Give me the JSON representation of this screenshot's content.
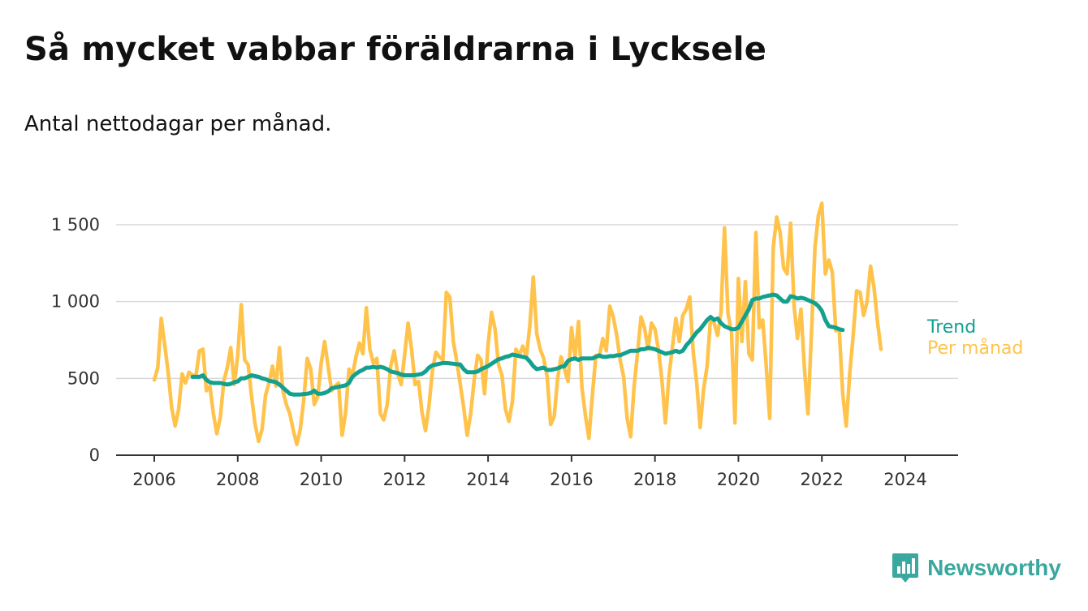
{
  "title": "Så mycket vabbar föräldrarna i Lycksele",
  "subtitle": "Antal nettodagar per månad.",
  "brand": {
    "name": "Newsworthy",
    "icon": "bar-chart-speech-bubble-icon",
    "color": "#3aa89e"
  },
  "chart_data": {
    "type": "line",
    "x_type": "date (monthly)",
    "ylim": [
      0,
      1700
    ],
    "yticks": [
      0,
      500,
      1000,
      1500
    ],
    "ytick_labels": [
      "0",
      "500",
      "1 000",
      "1 500"
    ],
    "xticks": [
      "2006",
      "2008",
      "2010",
      "2012",
      "2014",
      "2016",
      "2018",
      "2020",
      "2022",
      "2024"
    ],
    "grid": "horizontal",
    "legend": "end-of-line labels",
    "series": [
      {
        "name": "Per månad",
        "color": "#ffc34c",
        "start": "2006-01",
        "values": [
          490,
          570,
          890,
          720,
          540,
          310,
          190,
          300,
          530,
          470,
          540,
          520,
          520,
          680,
          690,
          420,
          450,
          270,
          140,
          250,
          480,
          570,
          700,
          460,
          650,
          980,
          620,
          590,
          380,
          200,
          90,
          170,
          390,
          470,
          580,
          450,
          700,
          420,
          330,
          270,
          160,
          70,
          170,
          360,
          630,
          560,
          330,
          380,
          600,
          740,
          580,
          420,
          450,
          470,
          130,
          270,
          560,
          520,
          640,
          730,
          660,
          960,
          690,
          600,
          630,
          270,
          230,
          330,
          580,
          680,
          530,
          460,
          650,
          860,
          690,
          460,
          480,
          280,
          160,
          320,
          550,
          670,
          640,
          620,
          1060,
          1030,
          740,
          610,
          460,
          310,
          130,
          270,
          490,
          650,
          620,
          400,
          720,
          930,
          820,
          590,
          520,
          300,
          220,
          350,
          690,
          650,
          710,
          640,
          840,
          1160,
          790,
          690,
          630,
          510,
          200,
          250,
          500,
          640,
          560,
          480,
          830,
          640,
          870,
          440,
          260,
          110,
          390,
          650,
          640,
          760,
          680,
          970,
          900,
          780,
          620,
          510,
          240,
          120,
          450,
          670,
          900,
          830,
          690,
          860,
          820,
          690,
          490,
          210,
          510,
          700,
          890,
          740,
          910,
          950,
          1030,
          670,
          470,
          180,
          430,
          580,
          900,
          860,
          780,
          930,
          1480,
          920,
          800,
          210,
          1150,
          740,
          1130,
          660,
          620,
          1450,
          830,
          880,
          580,
          240,
          1350,
          1550,
          1450,
          1220,
          1180,
          1510,
          970,
          760,
          950,
          560,
          270,
          790,
          1350,
          1560,
          1640,
          1180,
          1270,
          1190,
          810,
          820,
          400,
          190,
          530,
          780,
          1070,
          1060,
          910,
          1000,
          1230,
          1090,
          870,
          690
        ]
      },
      {
        "name": "Trend",
        "color": "#13a08f",
        "start": "2006-12",
        "values": [
          510,
          510,
          510,
          520,
          490,
          475,
          470,
          470,
          470,
          465,
          460,
          465,
          475,
          480,
          500,
          500,
          510,
          520,
          515,
          510,
          500,
          495,
          485,
          480,
          475,
          460,
          440,
          420,
          400,
          395,
          395,
          395,
          398,
          400,
          405,
          420,
          400,
          400,
          405,
          415,
          435,
          440,
          445,
          450,
          455,
          470,
          510,
          530,
          545,
          555,
          570,
          570,
          575,
          570,
          575,
          570,
          560,
          545,
          540,
          535,
          525,
          520,
          520,
          520,
          522,
          525,
          530,
          545,
          570,
          585,
          590,
          595,
          600,
          600,
          598,
          595,
          592,
          590,
          560,
          540,
          540,
          540,
          545,
          560,
          570,
          580,
          595,
          610,
          625,
          630,
          640,
          645,
          655,
          650,
          645,
          640,
          635,
          610,
          580,
          560,
          565,
          570,
          555,
          555,
          560,
          565,
          575,
          580,
          615,
          625,
          630,
          620,
          630,
          630,
          630,
          630,
          640,
          650,
          640,
          640,
          645,
          645,
          650,
          650,
          660,
          670,
          680,
          680,
          680,
          690,
          690,
          700,
          695,
          690,
          680,
          670,
          660,
          665,
          670,
          680,
          670,
          680,
          715,
          740,
          770,
          800,
          820,
          850,
          880,
          900,
          880,
          890,
          860,
          840,
          830,
          820,
          820,
          830,
          870,
          910,
          950,
          1010,
          1020,
          1020,
          1030,
          1035,
          1040,
          1045,
          1040,
          1020,
          1000,
          1000,
          1035,
          1030,
          1020,
          1025,
          1020,
          1010,
          1000,
          990,
          970,
          940,
          880,
          840,
          835,
          830,
          820,
          815
        ]
      }
    ]
  }
}
